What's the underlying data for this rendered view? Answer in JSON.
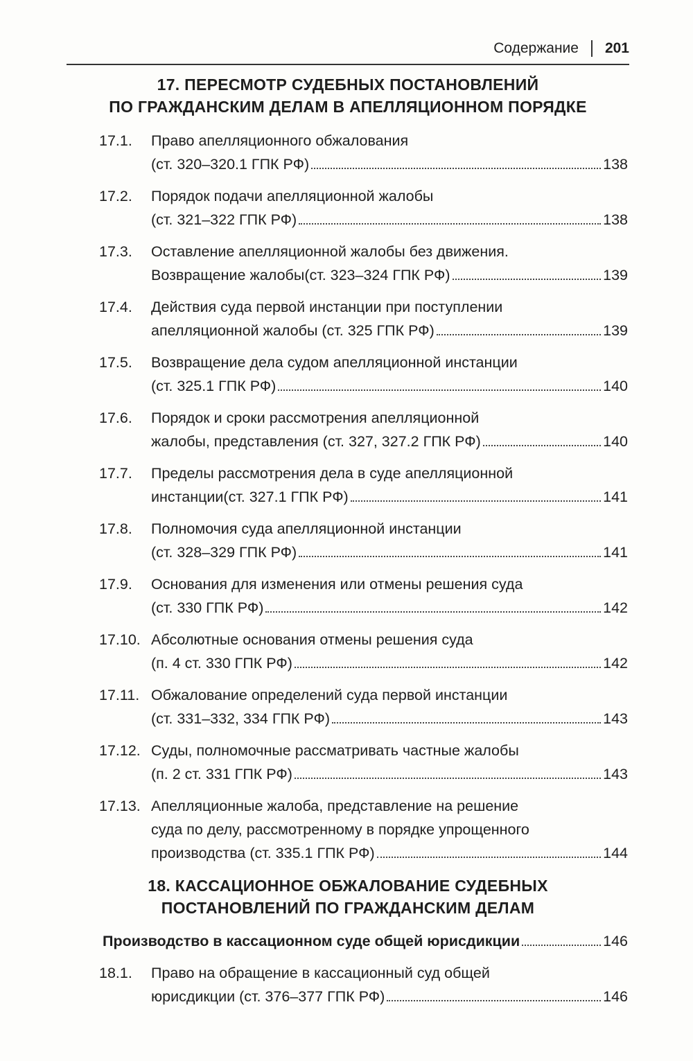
{
  "header": {
    "section": "Содержание",
    "page": "201"
  },
  "chapter17": {
    "line1": "17. ПЕРЕСМОТР СУДЕБНЫХ ПОСТАНОВЛЕНИЙ",
    "line2": "ПО ГРАЖДАНСКИМ ДЕЛАМ В АПЕЛЛЯЦИОННОМ ПОРЯДКЕ"
  },
  "entries17": [
    {
      "num": "17.1.",
      "lines": [
        "Право апелляционного обжалования",
        "(ст. 320–320.1 ГПК РФ)"
      ],
      "page": "138"
    },
    {
      "num": "17.2.",
      "lines": [
        "Порядок подачи апелляционной жалобы",
        "(ст. 321–322 ГПК РФ)"
      ],
      "page": "138"
    },
    {
      "num": "17.3.",
      "lines": [
        "Оставление апелляционной жалобы без движения.",
        "Возвращение жалобы(ст. 323–324 ГПК РФ)"
      ],
      "page": "139"
    },
    {
      "num": "17.4.",
      "lines": [
        "Действия суда первой инстанции при поступлении",
        "апелляционной жалобы (ст. 325 ГПК РФ)"
      ],
      "page": "139"
    },
    {
      "num": "17.5.",
      "lines": [
        "Возвращение дела судом апелляционной инстанции",
        "(ст. 325.1 ГПК РФ)"
      ],
      "page": "140"
    },
    {
      "num": "17.6.",
      "lines": [
        "Порядок и сроки рассмотрения апелляционной",
        "жалобы, представления (ст. 327, 327.2 ГПК РФ)"
      ],
      "page": "140"
    },
    {
      "num": "17.7.",
      "lines": [
        "Пределы рассмотрения дела в суде апелляционной",
        "инстанции(ст. 327.1 ГПК РФ)"
      ],
      "page": "141"
    },
    {
      "num": "17.8.",
      "lines": [
        "Полномочия суда апелляционной инстанции",
        "(ст. 328–329 ГПК РФ)"
      ],
      "page": "141"
    },
    {
      "num": "17.9.",
      "lines": [
        "Основания для изменения или отмены решения суда",
        "(ст. 330 ГПК РФ)"
      ],
      "page": "142"
    },
    {
      "num": "17.10.",
      "lines": [
        "Абсолютные основания отмены решения суда",
        "(п. 4 ст. 330 ГПК РФ)"
      ],
      "page": "142"
    },
    {
      "num": "17.11.",
      "lines": [
        "Обжалование определений суда первой инстанции",
        "(ст. 331–332, 334 ГПК РФ)"
      ],
      "page": "143"
    },
    {
      "num": "17.12.",
      "lines": [
        "Суды, полномочные рассматривать частные жалобы",
        "(п. 2 ст. 331 ГПК РФ)"
      ],
      "page": "143"
    },
    {
      "num": "17.13.",
      "lines": [
        "Апелляционные жалоба, представление на решение",
        "суда по делу, рассмотренному в порядке упрощенного",
        "производства (ст. 335.1 ГПК РФ)"
      ],
      "page": "144"
    }
  ],
  "chapter18": {
    "line1": "18. КАССАЦИОННОЕ ОБЖАЛОВАНИЕ СУДЕБНЫХ",
    "line2": "ПОСТАНОВЛЕНИЙ ПО ГРАЖДАНСКИМ ДЕЛАМ"
  },
  "subsection": {
    "title": "Производство в кассационном суде общей юрисдикции",
    "page": "146"
  },
  "entries18": [
    {
      "num": "18.1.",
      "lines": [
        "Право на обращение в кассационный суд общей",
        "юрисдикции (ст. 376–377 ГПК РФ)"
      ],
      "page": "146"
    }
  ]
}
